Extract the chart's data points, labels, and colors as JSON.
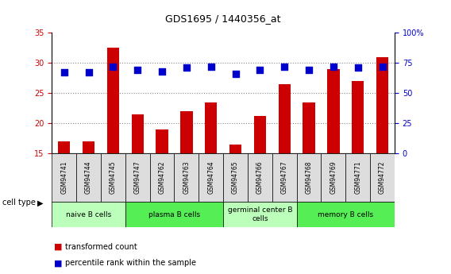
{
  "title": "GDS1695 / 1440356_at",
  "samples": [
    "GSM94741",
    "GSM94744",
    "GSM94745",
    "GSM94747",
    "GSM94762",
    "GSM94763",
    "GSM94764",
    "GSM94765",
    "GSM94766",
    "GSM94767",
    "GSM94768",
    "GSM94769",
    "GSM94771",
    "GSM94772"
  ],
  "transformed_count": [
    17.0,
    17.0,
    32.5,
    21.5,
    19.0,
    22.0,
    23.5,
    16.5,
    21.2,
    26.5,
    23.5,
    29.0,
    27.0,
    31.0
  ],
  "percentile_rank": [
    67,
    67,
    72,
    69,
    68,
    71,
    72,
    66,
    69,
    72,
    69,
    72,
    71,
    72
  ],
  "cell_type_groups": [
    {
      "label": "naive B cells",
      "start": 0,
      "end": 3,
      "color": "#bbffbb"
    },
    {
      "label": "plasma B cells",
      "start": 3,
      "end": 7,
      "color": "#55ee55"
    },
    {
      "label": "germinal center B\ncells",
      "start": 7,
      "end": 10,
      "color": "#bbffbb"
    },
    {
      "label": "memory B cells",
      "start": 10,
      "end": 14,
      "color": "#55ee55"
    }
  ],
  "ylim_left": [
    15,
    35
  ],
  "ylim_right": [
    0,
    100
  ],
  "yticks_left": [
    15,
    20,
    25,
    30,
    35
  ],
  "yticks_right": [
    0,
    25,
    50,
    75,
    100
  ],
  "ytick_labels_right": [
    "0",
    "25",
    "50",
    "75",
    "100%"
  ],
  "bar_color": "#cc0000",
  "dot_color": "#0000cc",
  "grid_color": "#888888",
  "background_color": "#ffffff",
  "tick_label_color_left": "#cc0000",
  "tick_label_color_right": "#0000cc",
  "bar_width": 0.5,
  "dot_size": 40,
  "sample_box_color": "#dddddd"
}
